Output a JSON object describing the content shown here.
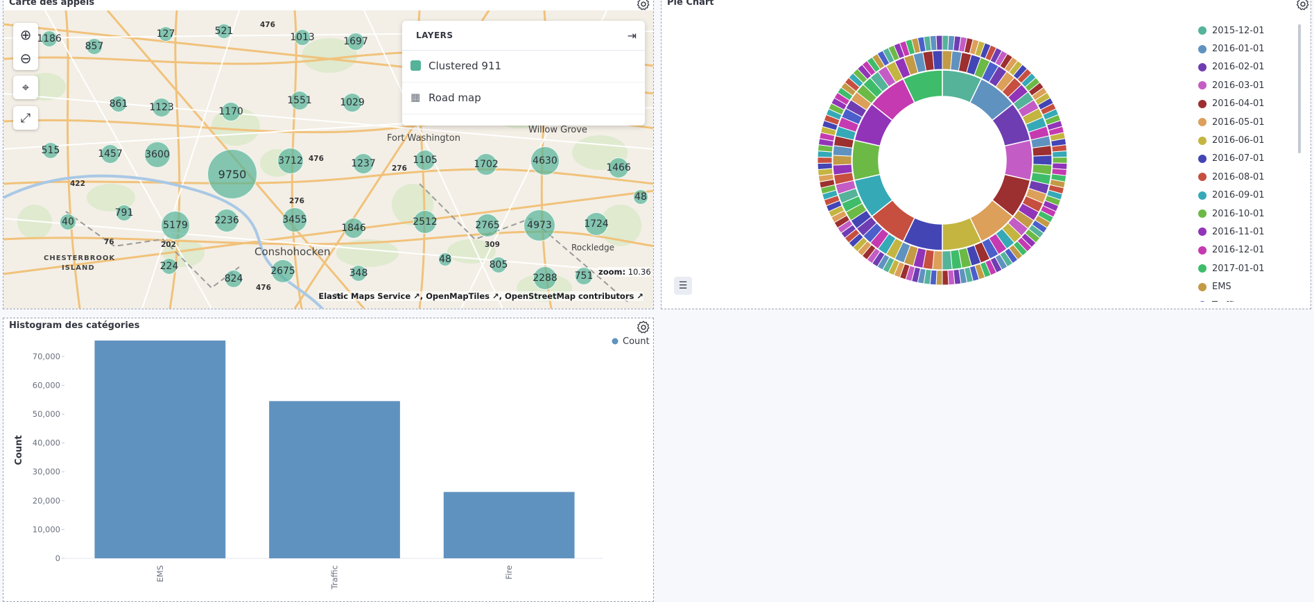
{
  "map_panel": {
    "title": "Carte des appels",
    "layers_title": "LAYERS",
    "layers": [
      {
        "name": "Clustered 911",
        "color": "#54B399",
        "icon": "square-swatch-icon"
      },
      {
        "name": "Road map",
        "icon": "grid-icon"
      }
    ],
    "clusters": [
      {
        "label": "1186"
      },
      {
        "label": "857"
      },
      {
        "label": "127"
      },
      {
        "label": "521"
      },
      {
        "label": "1013"
      },
      {
        "label": "1697"
      },
      {
        "label": "861"
      },
      {
        "label": "1123"
      },
      {
        "label": "1170"
      },
      {
        "label": "1551"
      },
      {
        "label": "1029"
      },
      {
        "label": "515"
      },
      {
        "label": "1457"
      },
      {
        "label": "3600"
      },
      {
        "label": "9750"
      },
      {
        "label": "3712"
      },
      {
        "label": "1237"
      },
      {
        "label": "1105"
      },
      {
        "label": "1702"
      },
      {
        "label": "4630"
      },
      {
        "label": "1466"
      },
      {
        "label": "40"
      },
      {
        "label": "791"
      },
      {
        "label": "5179"
      },
      {
        "label": "2236"
      },
      {
        "label": "3455"
      },
      {
        "label": "1846"
      },
      {
        "label": "2512"
      },
      {
        "label": "2765"
      },
      {
        "label": "4973"
      },
      {
        "label": "1724"
      },
      {
        "label": "48"
      },
      {
        "label": "224"
      },
      {
        "label": "824"
      },
      {
        "label": "2675"
      },
      {
        "label": "348"
      },
      {
        "label": "48"
      },
      {
        "label": "805"
      },
      {
        "label": "2288"
      },
      {
        "label": "751"
      }
    ],
    "places": [
      "Fort Washington",
      "Willow Grove",
      "Conshohocken",
      "Rockledge",
      "CHESTERBROOK",
      "ISLAND"
    ],
    "route_labels": [
      "476",
      "476",
      "276",
      "276",
      "422",
      "76",
      "202",
      "309",
      "476",
      "76"
    ],
    "zoom_label": "zoom:",
    "zoom_value": "10.36",
    "attribution": [
      "Elastic Maps Service",
      "OpenMapTiles",
      "OpenStreetMap contributors"
    ]
  },
  "pie_panel": {
    "title": "Pie Chart",
    "legend": [
      {
        "label": "2015-12-01",
        "color": "#54B399"
      },
      {
        "label": "2016-01-01",
        "color": "#6092C0"
      },
      {
        "label": "2016-02-01",
        "color": "#6F3DB2"
      },
      {
        "label": "2016-03-01",
        "color": "#C45CC6"
      },
      {
        "label": "2016-04-01",
        "color": "#9C2F2F"
      },
      {
        "label": "2016-05-01",
        "color": "#DCA05A"
      },
      {
        "label": "2016-06-01",
        "color": "#C3B540"
      },
      {
        "label": "2016-07-01",
        "color": "#4345B5"
      },
      {
        "label": "2016-08-01",
        "color": "#C64F3F"
      },
      {
        "label": "2016-09-01",
        "color": "#36A9B7"
      },
      {
        "label": "2016-10-01",
        "color": "#6CB946"
      },
      {
        "label": "2016-11-01",
        "color": "#9134B8"
      },
      {
        "label": "2016-12-01",
        "color": "#C53AB0"
      },
      {
        "label": "2017-01-01",
        "color": "#3EBC6A"
      },
      {
        "label": "EMS",
        "color": "#C39A45"
      },
      {
        "label": "Traffic",
        "color": "#4B5FCB"
      }
    ]
  },
  "hist_panel": {
    "title": "Histogram des catégories"
  },
  "chart_data": {
    "type": "bar",
    "title": "Histogram des catégories",
    "categories": [
      "EMS",
      "Traffic",
      "Fire"
    ],
    "series": [
      {
        "name": "Count",
        "values": [
          75500,
          54500,
          23000
        ],
        "color": "#6092C0"
      }
    ],
    "xlabel": "",
    "ylabel": "Count",
    "ylim": [
      0,
      75500
    ],
    "yticks": [
      "0",
      "10,000",
      "20,000",
      "30,000",
      "40,000",
      "50,000",
      "60,000",
      "70,000"
    ],
    "legend": "top-right",
    "grid": false
  }
}
